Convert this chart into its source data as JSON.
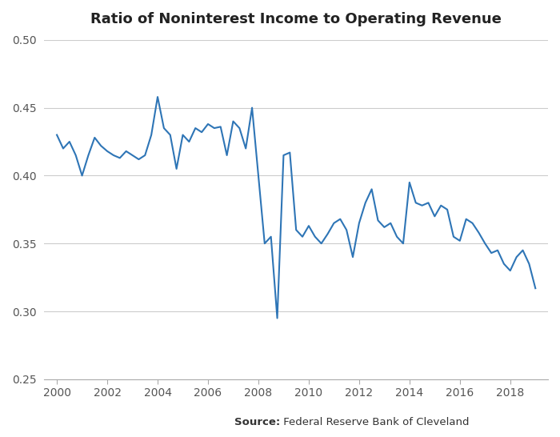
{
  "title": "Ratio of Noninterest Income to Operating Revenue",
  "source_bold": "Source:",
  "source_regular": " Federal Reserve Bank of Cleveland",
  "line_color": "#2E75B6",
  "line_width": 1.5,
  "background_color": "#ffffff",
  "grid_color": "#cccccc",
  "ylim": [
    0.25,
    0.5
  ],
  "yticks": [
    0.25,
    0.3,
    0.35,
    0.4,
    0.45,
    0.5
  ],
  "xlim": [
    1999.5,
    2019.5
  ],
  "xtick_positions": [
    2000,
    2002,
    2004,
    2006,
    2008,
    2010,
    2012,
    2014,
    2016,
    2018
  ],
  "xtick_labels": [
    "2000",
    "2002",
    "2004",
    "2006",
    "2008",
    "2010",
    "2012",
    "2014",
    "2016",
    "2018"
  ],
  "x_values": [
    2000.0,
    2000.25,
    2000.5,
    2000.75,
    2001.0,
    2001.25,
    2001.5,
    2001.75,
    2002.0,
    2002.25,
    2002.5,
    2002.75,
    2003.0,
    2003.25,
    2003.5,
    2003.75,
    2004.0,
    2004.25,
    2004.5,
    2004.75,
    2005.0,
    2005.25,
    2005.5,
    2005.75,
    2006.0,
    2006.25,
    2006.5,
    2006.75,
    2007.0,
    2007.25,
    2007.5,
    2007.75,
    2008.0,
    2008.25,
    2008.5,
    2008.75,
    2009.0,
    2009.25,
    2009.5,
    2009.75,
    2010.0,
    2010.25,
    2010.5,
    2010.75,
    2011.0,
    2011.25,
    2011.5,
    2011.75,
    2012.0,
    2012.25,
    2012.5,
    2012.75,
    2013.0,
    2013.25,
    2013.5,
    2013.75,
    2014.0,
    2014.25,
    2014.5,
    2014.75,
    2015.0,
    2015.25,
    2015.5,
    2015.75,
    2016.0,
    2016.25,
    2016.5,
    2016.75,
    2017.0,
    2017.25,
    2017.5,
    2017.75,
    2018.0,
    2018.25,
    2018.5,
    2018.75,
    2019.0
  ],
  "y_values": [
    0.43,
    0.42,
    0.425,
    0.415,
    0.4,
    0.415,
    0.428,
    0.422,
    0.418,
    0.415,
    0.413,
    0.418,
    0.415,
    0.412,
    0.415,
    0.43,
    0.458,
    0.435,
    0.43,
    0.405,
    0.43,
    0.425,
    0.435,
    0.432,
    0.438,
    0.435,
    0.436,
    0.415,
    0.44,
    0.435,
    0.42,
    0.45,
    0.4,
    0.35,
    0.355,
    0.295,
    0.415,
    0.417,
    0.36,
    0.355,
    0.363,
    0.355,
    0.35,
    0.357,
    0.365,
    0.368,
    0.36,
    0.34,
    0.365,
    0.38,
    0.39,
    0.367,
    0.362,
    0.365,
    0.355,
    0.35,
    0.395,
    0.38,
    0.378,
    0.38,
    0.37,
    0.378,
    0.375,
    0.355,
    0.352,
    0.368,
    0.365,
    0.358,
    0.35,
    0.343,
    0.345,
    0.335,
    0.33,
    0.34,
    0.345,
    0.335,
    0.317
  ]
}
